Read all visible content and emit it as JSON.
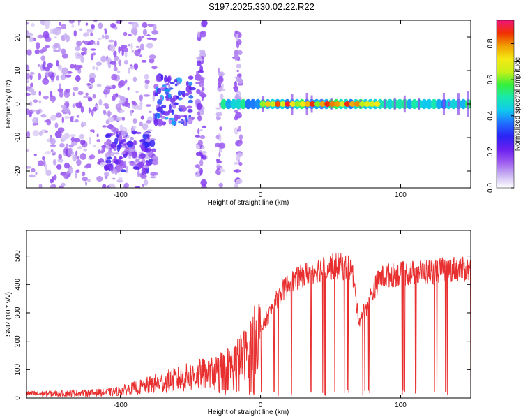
{
  "title": "S197.2025.330.02.22.R22",
  "colors": {
    "background": "#ffffff",
    "axis": "#000000",
    "snr_line": "#e83030",
    "spectrogram_scale": [
      "#ffffff",
      "#c9b3f2",
      "#9d5bf0",
      "#6a1ff0",
      "#2a24f5",
      "#1f6cff",
      "#10c8f0",
      "#18e8b0",
      "#36f03a",
      "#c8f018",
      "#f5e914",
      "#f0a000",
      "#f03000",
      "#f0147a"
    ]
  },
  "chart_data": [
    {
      "type": "heatmap",
      "xlabel": "Height of straight line (km)",
      "ylabel": "Frequency (Hz)",
      "xlim": [
        -167,
        150
      ],
      "ylim": [
        -25,
        25
      ],
      "xticks": [
        -100,
        0,
        100
      ],
      "xtick_labels": [
        "-100",
        "0",
        "100"
      ],
      "yticks": [
        -20,
        -10,
        0,
        10,
        20
      ],
      "ytick_labels": [
        "-20",
        "-10",
        "0",
        "10",
        "20"
      ],
      "grid": false,
      "colorbar": {
        "label": "Normalized spectral amplitude",
        "range": [
          0,
          0.93
        ],
        "ticks": [
          0,
          0.2,
          0.4,
          0.6,
          0.8
        ],
        "tick_labels": [
          "0.0",
          "0.2",
          "0.4",
          "0.6",
          "0.8"
        ],
        "orientation": "vertical",
        "placement": "right"
      },
      "features": [
        {
          "region": "diffuse noise",
          "x_range": [
            -167,
            -75
          ],
          "freq_range": [
            -25,
            25
          ],
          "amplitude": 0.12
        },
        {
          "region": "noise cluster",
          "x_range": [
            -110,
            -75
          ],
          "freq_range": [
            -20,
            -8
          ],
          "amplitude": 0.2
        },
        {
          "region": "cluster",
          "x_range": [
            -75,
            -48
          ],
          "freq_range": [
            -6,
            8
          ],
          "amplitude": 0.28
        },
        {
          "region": "vertical streak",
          "x_range": [
            -45,
            -40
          ],
          "freq_range": [
            -25,
            25
          ],
          "amplitude": 0.15
        },
        {
          "region": "vertical streak",
          "x_range": [
            -31,
            -27
          ],
          "freq_range": [
            -25,
            10
          ],
          "amplitude": 0.12
        },
        {
          "region": "vertical streak",
          "x_range": [
            -18,
            -14
          ],
          "freq_range": [
            -25,
            23
          ],
          "amplitude": 0.12
        },
        {
          "region": "carrier line",
          "x_range": [
            -28,
            150
          ],
          "freq_range": [
            -1.5,
            1.5
          ],
          "amplitude": 0.55
        },
        {
          "region": "carrier peak",
          "x_range": [
            0,
            85
          ],
          "freq_range": [
            -0.8,
            0.8
          ],
          "amplitude": 0.9
        }
      ]
    },
    {
      "type": "line",
      "xlabel": "Height of straight line (km)",
      "ylabel": "SNR (10 * v/v)",
      "xlim": [
        -167,
        150
      ],
      "ylim": [
        0,
        590
      ],
      "xticks": [
        -100,
        0,
        100
      ],
      "xtick_labels": [
        "-100",
        "0",
        "100"
      ],
      "yticks": [
        0,
        100,
        200,
        300,
        400,
        500
      ],
      "ytick_labels": [
        "0",
        "100",
        "200",
        "300",
        "400",
        "500"
      ],
      "grid": false,
      "series": [
        {
          "x": [
            -167,
            -150,
            -130,
            -110,
            -100,
            -90,
            -80,
            -70,
            -60,
            -50,
            -40,
            -30,
            -20,
            -10,
            -5,
            0,
            5,
            10,
            15,
            20,
            30,
            40,
            50,
            55,
            60,
            65,
            67,
            70,
            75,
            80,
            85,
            90,
            100,
            110,
            120,
            130,
            140,
            150
          ],
          "values": [
            15,
            15,
            17,
            20,
            25,
            35,
            45,
            55,
            65,
            75,
            85,
            100,
            120,
            160,
            200,
            240,
            290,
            340,
            380,
            410,
            440,
            460,
            470,
            475,
            470,
            470,
            400,
            280,
            320,
            380,
            430,
            440,
            445,
            450,
            455,
            460,
            465,
            460
          ]
        }
      ]
    }
  ]
}
